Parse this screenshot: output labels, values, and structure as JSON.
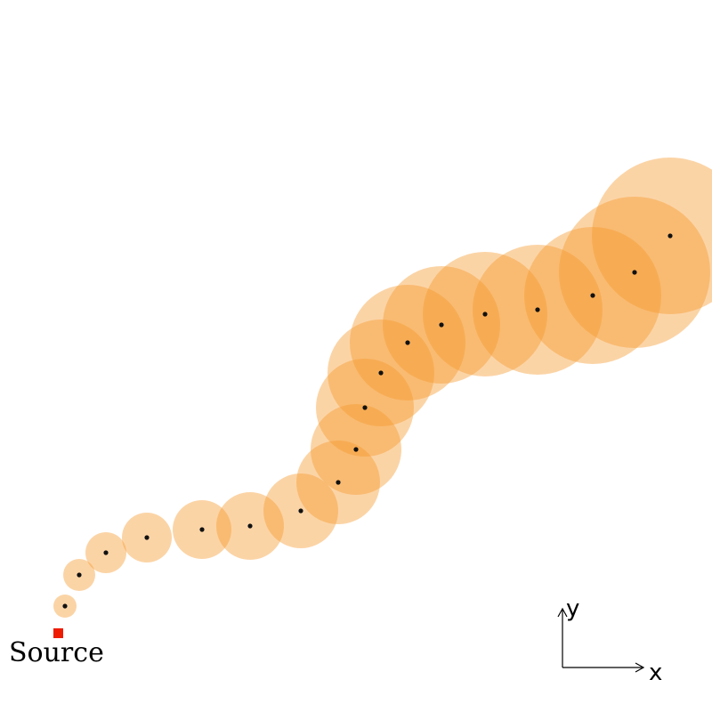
{
  "labels": {
    "source": "Source",
    "x_axis": "x",
    "y_axis": "y"
  },
  "colors": {
    "puff": "#f5982a",
    "center": "#111111",
    "source_marker": "#ee1c00",
    "axis": "#000000"
  },
  "puff_count": 17
}
